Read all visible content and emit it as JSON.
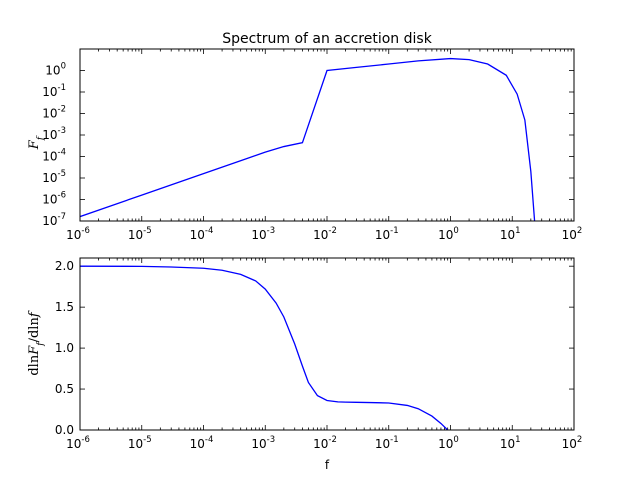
{
  "chart_data": [
    {
      "type": "line",
      "title": "Spectrum of an accretion disk",
      "ylabel": "F_f",
      "xlabel": "",
      "xscale": "log",
      "yscale": "log",
      "xlim": [
        1e-06,
        100
      ],
      "ylim": [
        1e-07,
        10
      ],
      "grid": false,
      "x_ticks": [
        {
          "base": "10",
          "exp": "-6"
        },
        {
          "base": "10",
          "exp": "-5"
        },
        {
          "base": "10",
          "exp": "-4"
        },
        {
          "base": "10",
          "exp": "-3"
        },
        {
          "base": "10",
          "exp": "-2"
        },
        {
          "base": "10",
          "exp": "-1"
        },
        {
          "base": "10",
          "exp": "0"
        },
        {
          "base": "10",
          "exp": "1"
        },
        {
          "base": "10",
          "exp": "2"
        }
      ],
      "y_ticks": [
        {
          "base": "10",
          "exp": "-7"
        },
        {
          "base": "10",
          "exp": "-6"
        },
        {
          "base": "10",
          "exp": "-5"
        },
        {
          "base": "10",
          "exp": "-4"
        },
        {
          "base": "10",
          "exp": "-3"
        },
        {
          "base": "10",
          "exp": "-2"
        },
        {
          "base": "10",
          "exp": "-1"
        },
        {
          "base": "10",
          "exp": "0"
        }
      ],
      "series": [
        {
          "color": "#0000ff",
          "x": [
            1e-06,
            1e-05,
            0.0001,
            0.0005,
            0.001,
            0.002,
            0.004,
            0.01,
            0.03,
            0.1,
            0.3,
            1,
            2,
            4,
            8,
            12,
            16,
            20,
            23
          ],
          "y": [
            1.6e-07,
            1.6e-06,
            1.6e-05,
            8e-05,
            0.00016,
            0.00029,
            0.00044,
            1.0,
            1.4,
            2.0,
            2.8,
            3.6,
            3.2,
            2.0,
            0.6,
            0.08,
            0.005,
            2e-05,
            1e-07
          ]
        }
      ]
    },
    {
      "type": "line",
      "title": "",
      "ylabel": "d ln F_f / d ln f",
      "xlabel": "f",
      "xscale": "log",
      "yscale": "linear",
      "xlim": [
        1e-06,
        100
      ],
      "ylim": [
        0.0,
        2.1
      ],
      "grid": false,
      "x_ticks": [
        {
          "base": "10",
          "exp": "-6"
        },
        {
          "base": "10",
          "exp": "-5"
        },
        {
          "base": "10",
          "exp": "-4"
        },
        {
          "base": "10",
          "exp": "-3"
        },
        {
          "base": "10",
          "exp": "-2"
        },
        {
          "base": "10",
          "exp": "-1"
        },
        {
          "base": "10",
          "exp": "0"
        },
        {
          "base": "10",
          "exp": "1"
        },
        {
          "base": "10",
          "exp": "2"
        }
      ],
      "y_ticks": [
        "0.0",
        "0.5",
        "1.0",
        "1.5",
        "2.0"
      ],
      "series": [
        {
          "color": "#0000ff",
          "x": [
            1e-06,
            1e-05,
            3e-05,
            0.0001,
            0.0002,
            0.0004,
            0.0007,
            0.001,
            0.0015,
            0.002,
            0.003,
            0.004,
            0.005,
            0.007,
            0.01,
            0.015,
            0.02,
            0.03,
            0.05,
            0.1,
            0.2,
            0.3,
            0.5,
            0.7,
            0.9
          ],
          "y": [
            2.0,
            1.998,
            1.99,
            1.975,
            1.95,
            1.9,
            1.82,
            1.72,
            1.55,
            1.38,
            1.05,
            0.78,
            0.58,
            0.42,
            0.36,
            0.343,
            0.34,
            0.338,
            0.335,
            0.33,
            0.3,
            0.26,
            0.17,
            0.08,
            0.0
          ]
        }
      ]
    }
  ]
}
